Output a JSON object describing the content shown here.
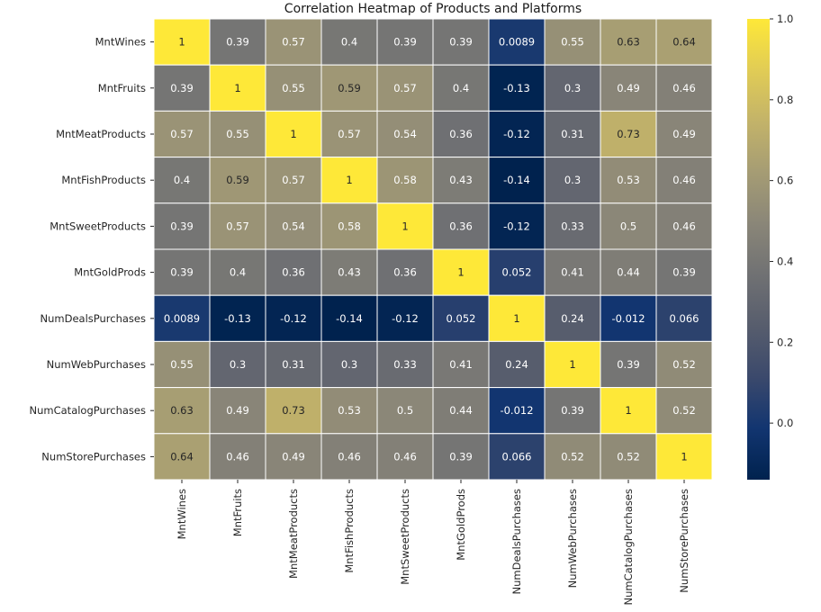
{
  "chart_data": {
    "type": "heatmap",
    "title": "Correlation Heatmap of Products and Platforms",
    "xlabel": "",
    "ylabel": "",
    "row_labels": [
      "MntWines",
      "MntFruits",
      "MntMeatProducts",
      "MntFishProducts",
      "MntSweetProducts",
      "MntGoldProds",
      "NumDealsPurchases",
      "NumWebPurchases",
      "NumCatalogPurchases",
      "NumStorePurchases"
    ],
    "col_labels": [
      "MntWines",
      "MntFruits",
      "MntMeatProducts",
      "MntFishProducts",
      "MntSweetProducts",
      "MntGoldProds",
      "NumDealsPurchases",
      "NumWebPurchases",
      "NumCatalogPurchases",
      "NumStorePurchases"
    ],
    "values": [
      [
        1,
        0.39,
        0.57,
        0.4,
        0.39,
        0.39,
        0.0089,
        0.55,
        0.63,
        0.64
      ],
      [
        0.39,
        1,
        0.55,
        0.59,
        0.57,
        0.4,
        -0.13,
        0.3,
        0.49,
        0.46
      ],
      [
        0.57,
        0.55,
        1,
        0.57,
        0.54,
        0.36,
        -0.12,
        0.31,
        0.73,
        0.49
      ],
      [
        0.4,
        0.59,
        0.57,
        1,
        0.58,
        0.43,
        -0.14,
        0.3,
        0.53,
        0.46
      ],
      [
        0.39,
        0.57,
        0.54,
        0.58,
        1,
        0.36,
        -0.12,
        0.33,
        0.5,
        0.46
      ],
      [
        0.39,
        0.4,
        0.36,
        0.43,
        0.36,
        1,
        0.052,
        0.41,
        0.44,
        0.39
      ],
      [
        0.0089,
        -0.13,
        -0.12,
        -0.14,
        -0.12,
        0.052,
        1,
        0.24,
        -0.012,
        0.066
      ],
      [
        0.55,
        0.3,
        0.31,
        0.3,
        0.33,
        0.41,
        0.24,
        1,
        0.39,
        0.52
      ],
      [
        0.63,
        0.49,
        0.73,
        0.53,
        0.5,
        0.44,
        -0.012,
        0.39,
        1,
        0.52
      ],
      [
        0.64,
        0.46,
        0.49,
        0.46,
        0.46,
        0.39,
        0.066,
        0.52,
        0.52,
        1
      ]
    ],
    "annotations": [
      [
        "1",
        "0.39",
        "0.57",
        "0.4",
        "0.39",
        "0.39",
        "0.0089",
        "0.55",
        "0.63",
        "0.64"
      ],
      [
        "0.39",
        "1",
        "0.55",
        "0.59",
        "0.57",
        "0.4",
        "-0.13",
        "0.3",
        "0.49",
        "0.46"
      ],
      [
        "0.57",
        "0.55",
        "1",
        "0.57",
        "0.54",
        "0.36",
        "-0.12",
        "0.31",
        "0.73",
        "0.49"
      ],
      [
        "0.4",
        "0.59",
        "0.57",
        "1",
        "0.58",
        "0.43",
        "-0.14",
        "0.3",
        "0.53",
        "0.46"
      ],
      [
        "0.39",
        "0.57",
        "0.54",
        "0.58",
        "1",
        "0.36",
        "-0.12",
        "0.33",
        "0.5",
        "0.46"
      ],
      [
        "0.39",
        "0.4",
        "0.36",
        "0.43",
        "0.36",
        "1",
        "0.052",
        "0.41",
        "0.44",
        "0.39"
      ],
      [
        "0.0089",
        "-0.13",
        "-0.12",
        "-0.14",
        "-0.12",
        "0.052",
        "1",
        "0.24",
        "-0.012",
        "0.066"
      ],
      [
        "0.55",
        "0.3",
        "0.31",
        "0.3",
        "0.33",
        "0.41",
        "0.24",
        "1",
        "0.39",
        "0.52"
      ],
      [
        "0.63",
        "0.49",
        "0.73",
        "0.53",
        "0.5",
        "0.44",
        "-0.012",
        "0.39",
        "1",
        "0.52"
      ],
      [
        "0.64",
        "0.46",
        "0.49",
        "0.46",
        "0.46",
        "0.39",
        "0.066",
        "0.52",
        "0.52",
        "1"
      ]
    ],
    "colormap": "cividis",
    "colorbar": {
      "vmin": -0.14,
      "vmax": 1.0,
      "ticks": [
        0.0,
        0.2,
        0.4,
        0.6,
        0.8,
        1.0
      ],
      "tick_labels": [
        "0.0",
        "0.2",
        "0.4",
        "0.6",
        "0.8",
        "1.0"
      ],
      "placement": "right"
    },
    "grid": false,
    "cell_border_color": "#ffffff",
    "colormap_stops": [
      "#00224e",
      "#123570",
      "#3b496c",
      "#575d6d",
      "#707173",
      "#8a8678",
      "#a59c74",
      "#c3b369",
      "#e1cc55",
      "#fee838"
    ]
  }
}
